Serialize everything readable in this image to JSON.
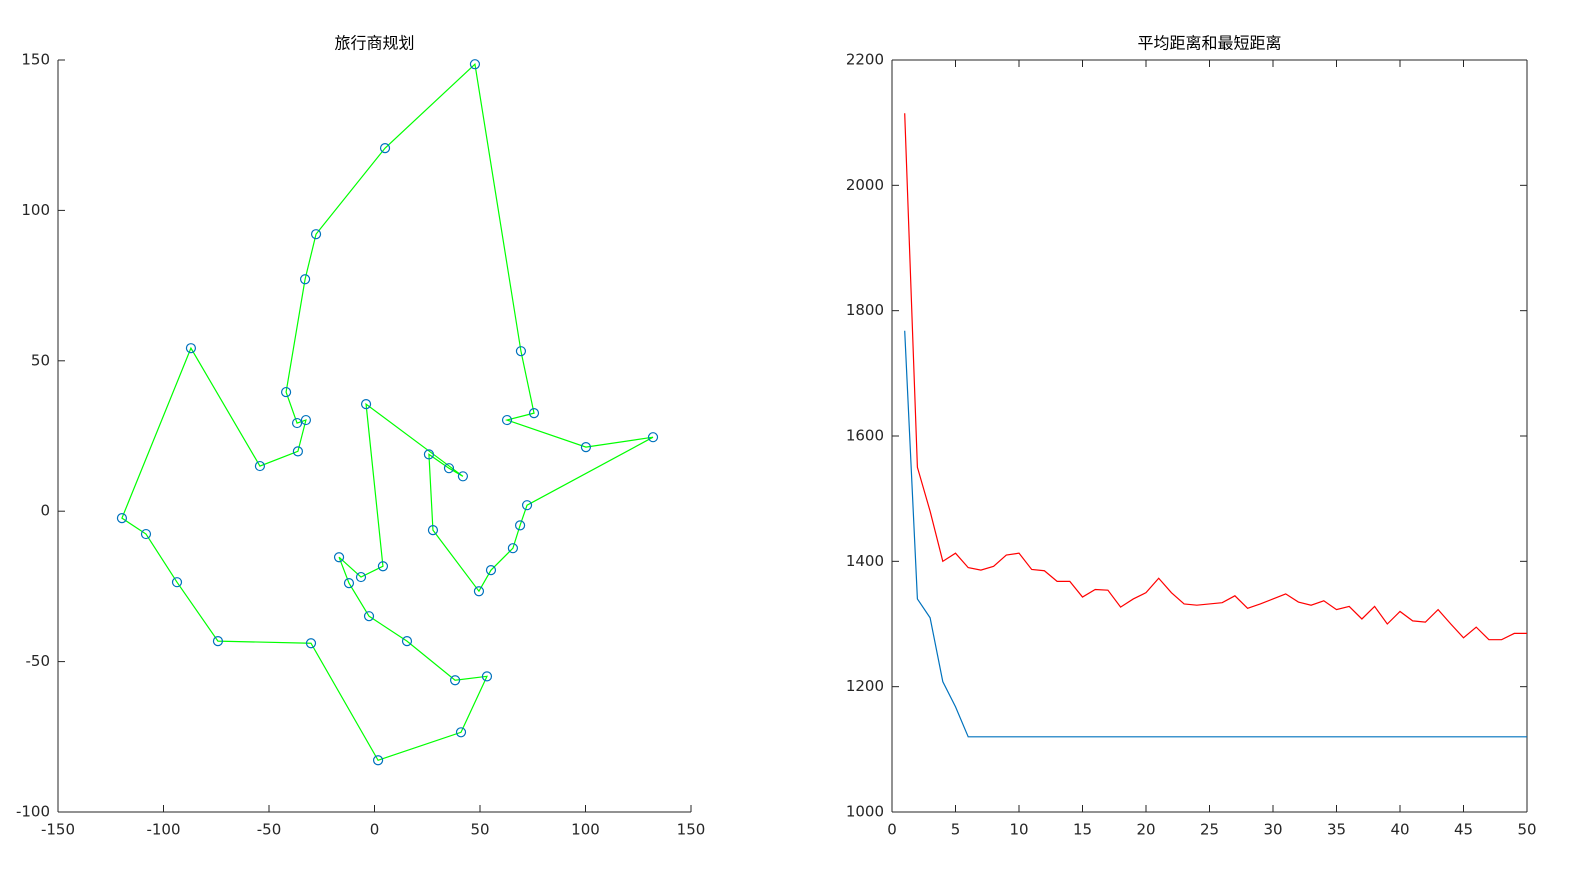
{
  "chart_data": [
    {
      "type": "line",
      "title": "旅行商规划",
      "closed": true,
      "markers": true,
      "box": false,
      "xlim": [
        -150,
        150
      ],
      "xticks": [
        -150,
        -100,
        -50,
        0,
        50,
        100,
        150
      ],
      "ylim": [
        -100,
        150
      ],
      "yticks": [
        -100,
        -50,
        0,
        50,
        100,
        150
      ],
      "series": [
        {
          "color": "#00ff00",
          "marker_color": "#0072bd",
          "x": [
            -119.7,
            -87.0,
            -54.3,
            -36.3,
            -32.5,
            -36.7,
            -41.9,
            -32.9,
            -27.7,
            5.0,
            47.6,
            69.4,
            75.6,
            62.8,
            100.2,
            132.0,
            72.3,
            69.0,
            65.6,
            55.2,
            49.5,
            27.7,
            25.8,
            35.3,
            41.9,
            -4.0,
            4.0,
            -6.4,
            -16.8,
            -12.1,
            -2.6,
            15.4,
            38.2,
            53.3,
            41.0,
            1.7,
            -30.1,
            -74.2,
            -93.6,
            -108.3
          ],
          "values": [
            -2.3,
            54.2,
            15.0,
            19.9,
            30.3,
            29.3,
            39.6,
            77.1,
            92.1,
            120.7,
            148.6,
            53.2,
            32.6,
            30.3,
            21.3,
            24.6,
            2.0,
            -4.7,
            -12.3,
            -19.6,
            -26.6,
            -6.3,
            18.9,
            14.3,
            11.6,
            35.6,
            -18.3,
            -21.9,
            -15.3,
            -23.9,
            -34.9,
            -43.2,
            -56.2,
            -54.9,
            -73.5,
            -82.8,
            -43.9,
            -43.2,
            -23.6,
            -7.6
          ]
        }
      ]
    },
    {
      "type": "line",
      "title": "平均距离和最短距离",
      "closed": false,
      "markers": false,
      "box": true,
      "xlim": [
        0,
        50
      ],
      "xticks": [
        0,
        5,
        10,
        15,
        20,
        25,
        30,
        35,
        40,
        45,
        50
      ],
      "ylim": [
        1000,
        2200
      ],
      "yticks": [
        1000,
        1200,
        1400,
        1600,
        1800,
        2000,
        2200
      ],
      "x": [
        1,
        2,
        3,
        4,
        5,
        6,
        7,
        8,
        9,
        10,
        11,
        12,
        13,
        14,
        15,
        16,
        17,
        18,
        19,
        20,
        21,
        22,
        23,
        24,
        25,
        26,
        27,
        28,
        29,
        30,
        31,
        32,
        33,
        34,
        35,
        36,
        37,
        38,
        39,
        40,
        41,
        42,
        43,
        44,
        45,
        46,
        47,
        48,
        49,
        50
      ],
      "series": [
        {
          "color": "#ff0000",
          "values": [
            2115,
            1550,
            1480,
            1400,
            1413,
            1390,
            1386,
            1392,
            1410,
            1413,
            1387,
            1385,
            1368,
            1368,
            1343,
            1355,
            1354,
            1327,
            1340,
            1350,
            1373,
            1350,
            1332,
            1330,
            1332,
            1334,
            1345,
            1325,
            1332,
            1340,
            1348,
            1335,
            1330,
            1337,
            1323,
            1328,
            1308,
            1328,
            1300,
            1320,
            1305,
            1303,
            1323,
            1300,
            1278,
            1295,
            1275,
            1275,
            1285,
            1285
          ]
        },
        {
          "color": "#0072bd",
          "values": [
            1768,
            1340,
            1310,
            1208,
            1168,
            1120,
            1120,
            1120,
            1120,
            1120,
            1120,
            1120,
            1120,
            1120,
            1120,
            1120,
            1120,
            1120,
            1120,
            1120,
            1120,
            1120,
            1120,
            1120,
            1120,
            1120,
            1120,
            1120,
            1120,
            1120,
            1120,
            1120,
            1120,
            1120,
            1120,
            1120,
            1120,
            1120,
            1120,
            1120,
            1120,
            1120,
            1120,
            1120,
            1120,
            1120,
            1120,
            1120,
            1120,
            1120
          ]
        }
      ]
    }
  ]
}
